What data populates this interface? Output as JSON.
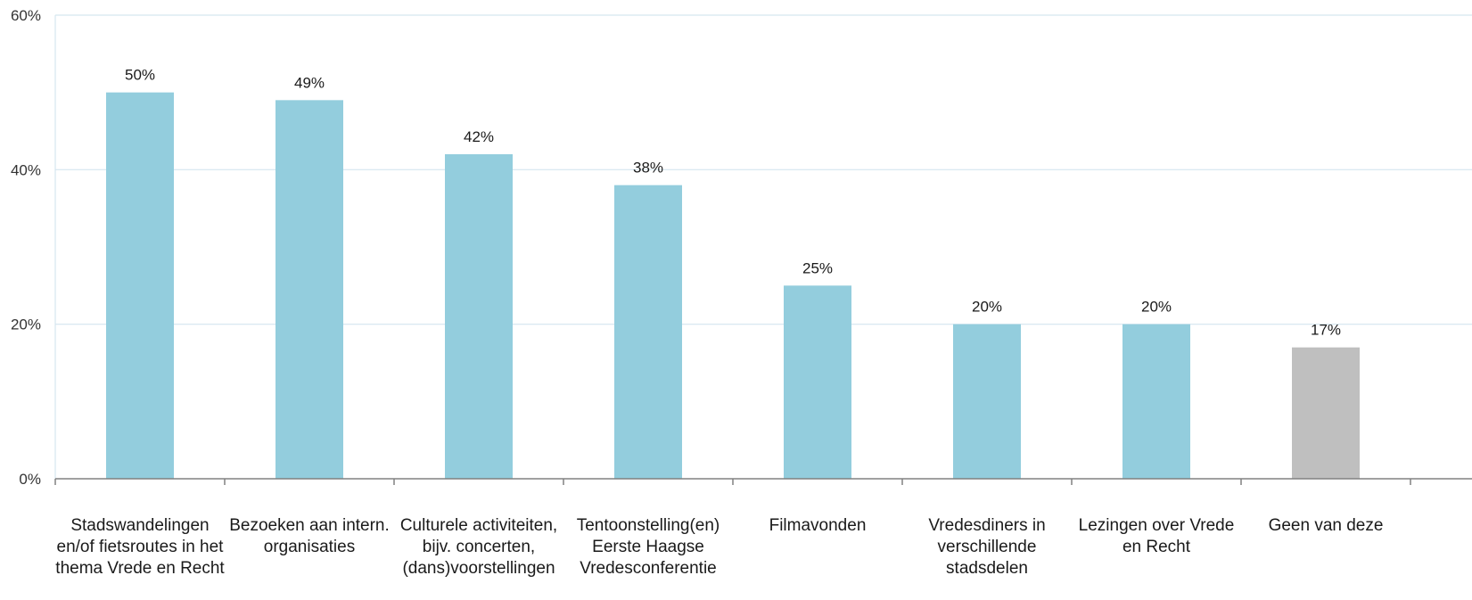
{
  "chart_data": {
    "type": "bar",
    "title": "",
    "xlabel": "",
    "ylabel": "",
    "ylim": [
      0,
      60
    ],
    "yticks": [
      0,
      20,
      40,
      60
    ],
    "ytick_labels": [
      "0%",
      "20%",
      "40%",
      "60%"
    ],
    "grid": true,
    "categories": [
      "Stadswandelingen en/of fietsroutes in het thema Vrede en Recht",
      "Bezoeken aan intern. organisaties",
      "Culturele activiteiten, bijv. concerten, (dans)voorstellingen",
      "Tentoonstelling(en) Eerste Haagse Vredesconferentie",
      "Filmavonden",
      "Vredesdiners in verschillende stadsdelen",
      "Lezingen over Vrede en Recht",
      "Geen van deze"
    ],
    "values": [
      50,
      49,
      42,
      38,
      25,
      20,
      20,
      17
    ],
    "data_labels": [
      "50%",
      "49%",
      "42%",
      "38%",
      "25%",
      "20%",
      "20%",
      "17%"
    ],
    "colors": [
      "#93cddd",
      "#93cddd",
      "#93cddd",
      "#93cddd",
      "#93cddd",
      "#93cddd",
      "#93cddd",
      "#bfbfbf"
    ],
    "grid_color": "#d5e6ef",
    "axis_color": "#808080"
  }
}
